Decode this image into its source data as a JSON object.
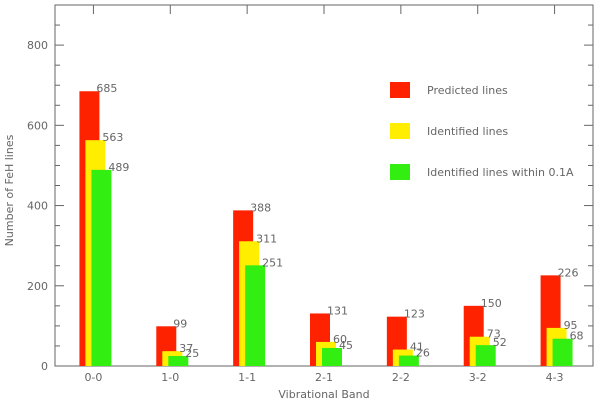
{
  "chart_data": {
    "type": "bar",
    "xlabel": "Vibrational Band",
    "ylabel": "Number of FeH lines",
    "categories": [
      "0-0",
      "1-0",
      "1-1",
      "2-1",
      "2-2",
      "3-2",
      "4-3"
    ],
    "ylim": [
      0,
      900
    ],
    "yticks": [
      0,
      200,
      400,
      600,
      800
    ],
    "grid": false,
    "legend_position": "top-right",
    "series": [
      {
        "name": "Predicted lines",
        "color": "#ff2200",
        "values": [
          685,
          99,
          388,
          131,
          123,
          150,
          226
        ]
      },
      {
        "name": "Identified lines",
        "color": "#ffee00",
        "values": [
          563,
          37,
          311,
          60,
          41,
          73,
          95
        ]
      },
      {
        "name": "Identified lines within 0.1A",
        "color": "#33ee11",
        "values": [
          489,
          25,
          251,
          45,
          26,
          52,
          68
        ]
      }
    ]
  }
}
